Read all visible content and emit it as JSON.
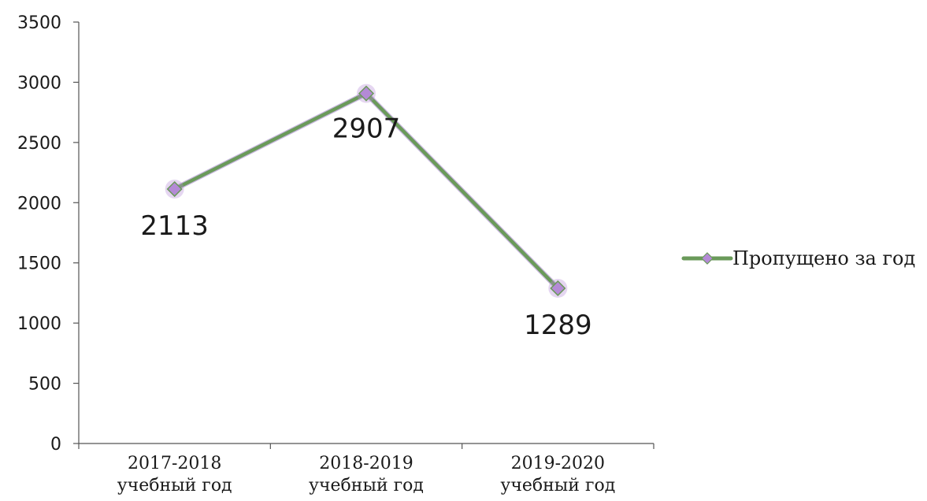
{
  "chart_data": {
    "type": "line",
    "categories": [
      [
        "2017-2018",
        "учебный год"
      ],
      [
        "2018-2019",
        "учебный год"
      ],
      [
        "2019-2020",
        "учебный год"
      ]
    ],
    "series": [
      {
        "name": "Пропущено за год",
        "values": [
          2113,
          2907,
          1289
        ],
        "color": "#6a9a5a",
        "marker_color": "#b48ad6"
      }
    ],
    "data_labels": [
      "2113",
      "2907",
      "1289"
    ],
    "yticks": [
      "0",
      "500",
      "1000",
      "1500",
      "2000",
      "2500",
      "3000",
      "3500"
    ],
    "ylim": [
      0,
      3500
    ],
    "legend_position": "right",
    "grid": false
  }
}
